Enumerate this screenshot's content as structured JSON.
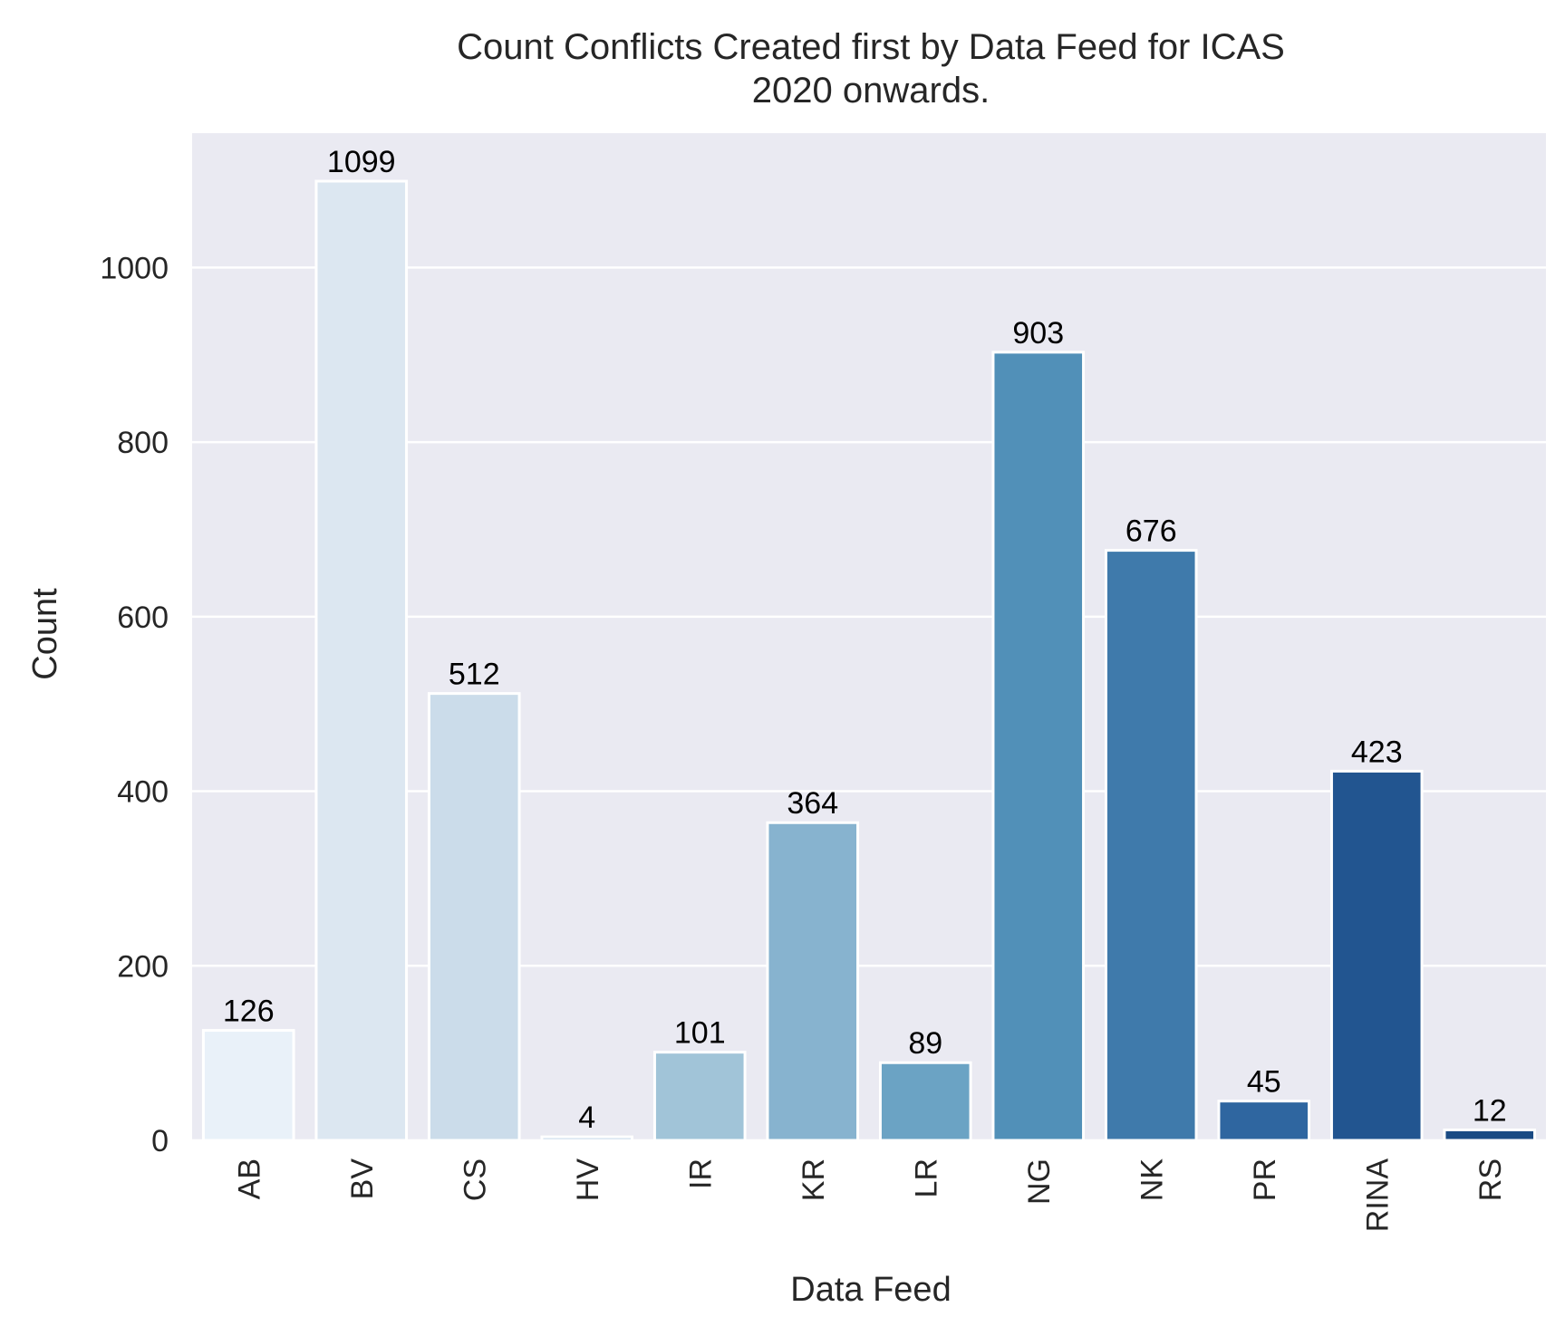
{
  "chart_data": {
    "type": "bar",
    "title": [
      "Count Conflicts Created first by Data Feed for ICAS",
      "2020 onwards."
    ],
    "xlabel": "Data Feed",
    "ylabel": "Count",
    "categories": [
      "AB",
      "BV",
      "CS",
      "HV",
      "IR",
      "KR",
      "LR",
      "NG",
      "NK",
      "PR",
      "RINA",
      "RS"
    ],
    "values": [
      126,
      1099,
      512,
      4,
      101,
      364,
      89,
      903,
      676,
      45,
      423,
      12
    ],
    "data_labels": [
      "126",
      "1099",
      "512",
      "4",
      "101",
      "364",
      "89",
      "903",
      "676",
      "45",
      "423",
      "12"
    ],
    "colors": [
      "#e9f1f9",
      "#dce7f1",
      "#cbdcea",
      "#b8d1e4",
      "#a1c4d8",
      "#87b3cf",
      "#6ba3c4",
      "#5190b8",
      "#3f7aab",
      "#2f66a0",
      "#225590",
      "#1a4b84"
    ],
    "yticks": [
      "0",
      "200",
      "400",
      "600",
      "800",
      "1000"
    ],
    "ylim": [
      0,
      1154
    ],
    "grid": true,
    "background": "#eaeaf2",
    "grid_color": "#ffffff",
    "bar_edge_color": "#ffffff"
  }
}
